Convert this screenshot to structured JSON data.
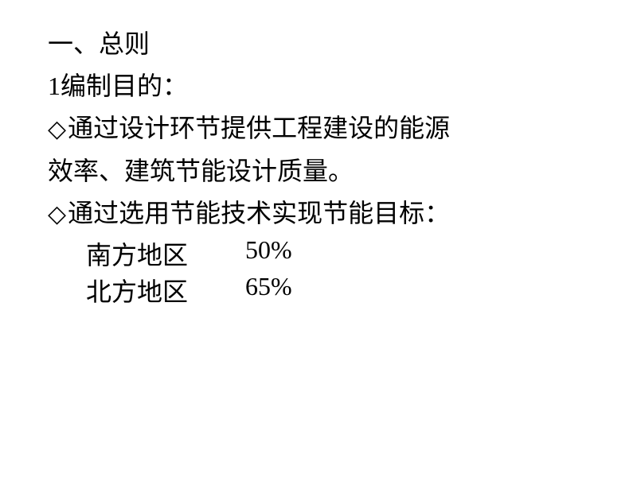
{
  "document": {
    "section_heading": "一、总则",
    "subsection_heading": "1编制目的：",
    "bullet_marker": "◇",
    "point1_line1": "通过设计环节提供工程建设的能源",
    "point1_line2": "效率、建筑节能设计质量。",
    "point2": "通过选用节能技术实现节能目标：",
    "targets": [
      {
        "region": "南方地区",
        "percentage": "50%"
      },
      {
        "region": "北方地区",
        "percentage": "65%"
      }
    ],
    "text_color": "#000000",
    "background_color": "#ffffff",
    "font_size": 32,
    "font_family": "SimSun"
  }
}
